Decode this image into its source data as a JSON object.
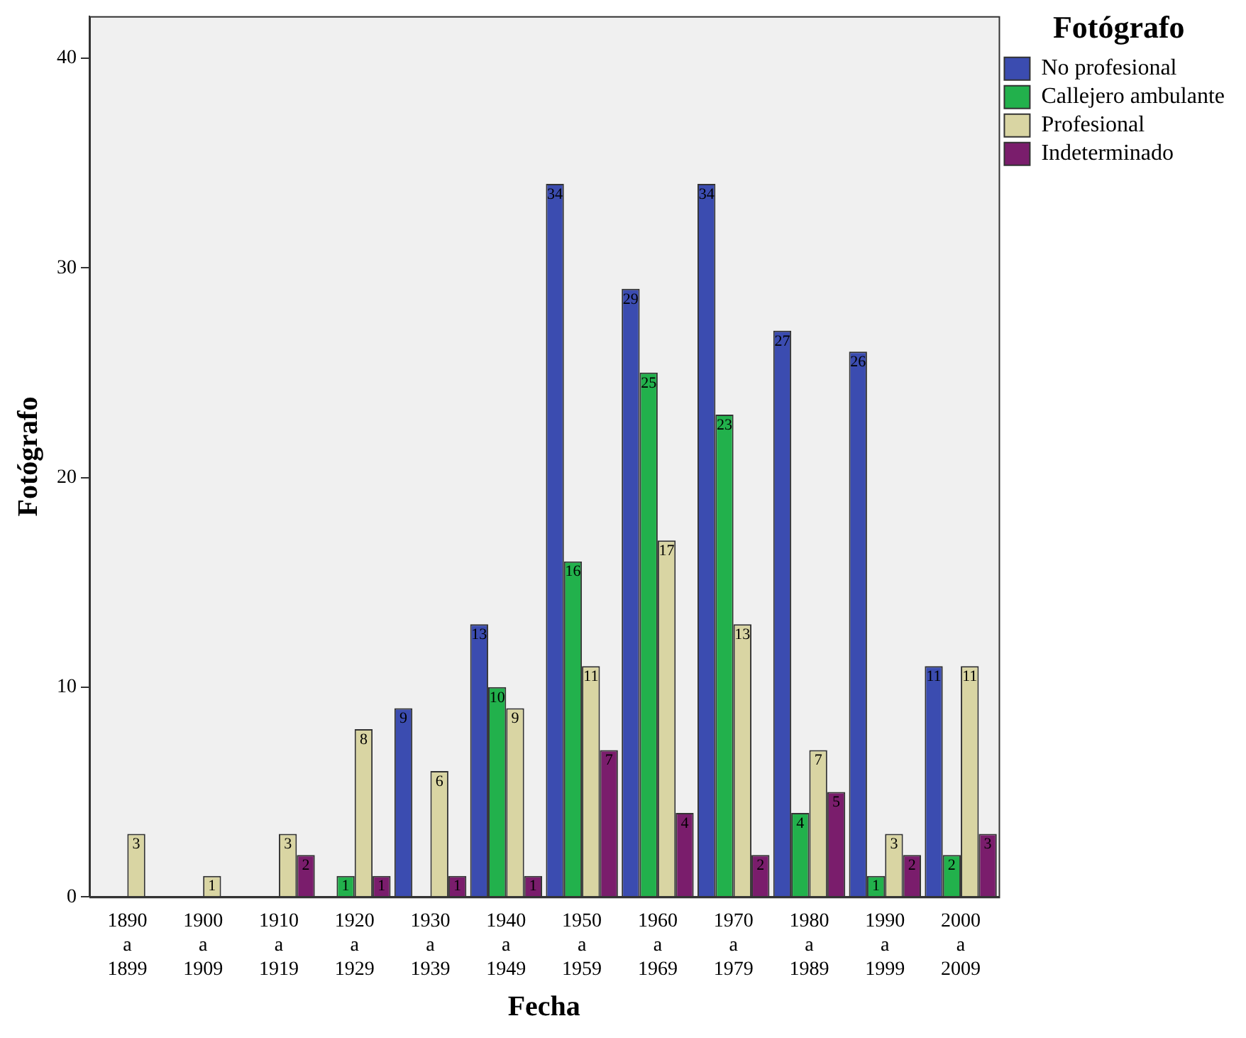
{
  "chart_data": {
    "type": "bar",
    "xlabel": "Fecha",
    "ylabel": "Fotógrafo",
    "legend_title": "Fotógrafo",
    "legend": "top right",
    "grid": false,
    "data_labels": true,
    "categories": [
      "1890 a 1899",
      "1900 a 1909",
      "1910 a 1919",
      "1920 a 1929",
      "1930 a 1939",
      "1940 a 1949",
      "1950 a 1959",
      "1960 a 1969",
      "1970 a 1979",
      "1980 a 1989",
      "1990 a 1999",
      "2000 a 2009"
    ],
    "ylim": [
      0,
      42
    ],
    "yticks": [
      0,
      10,
      20,
      30,
      40
    ],
    "series": [
      {
        "name": "No profesional",
        "color": "#3b4cb0",
        "values": [
          null,
          null,
          null,
          null,
          9,
          13,
          34,
          29,
          34,
          27,
          26,
          11
        ]
      },
      {
        "name": "Callejero ambulante",
        "color": "#22b14c",
        "values": [
          null,
          null,
          null,
          1,
          null,
          10,
          16,
          25,
          23,
          4,
          1,
          2
        ]
      },
      {
        "name": "Profesional",
        "color": "#d9d5a3",
        "values": [
          3,
          1,
          3,
          8,
          6,
          9,
          11,
          17,
          13,
          7,
          3,
          11
        ]
      },
      {
        "name": "Indeterminado",
        "color": "#7a1d6c",
        "values": [
          null,
          null,
          2,
          1,
          1,
          1,
          7,
          4,
          2,
          5,
          2,
          3
        ]
      }
    ]
  }
}
